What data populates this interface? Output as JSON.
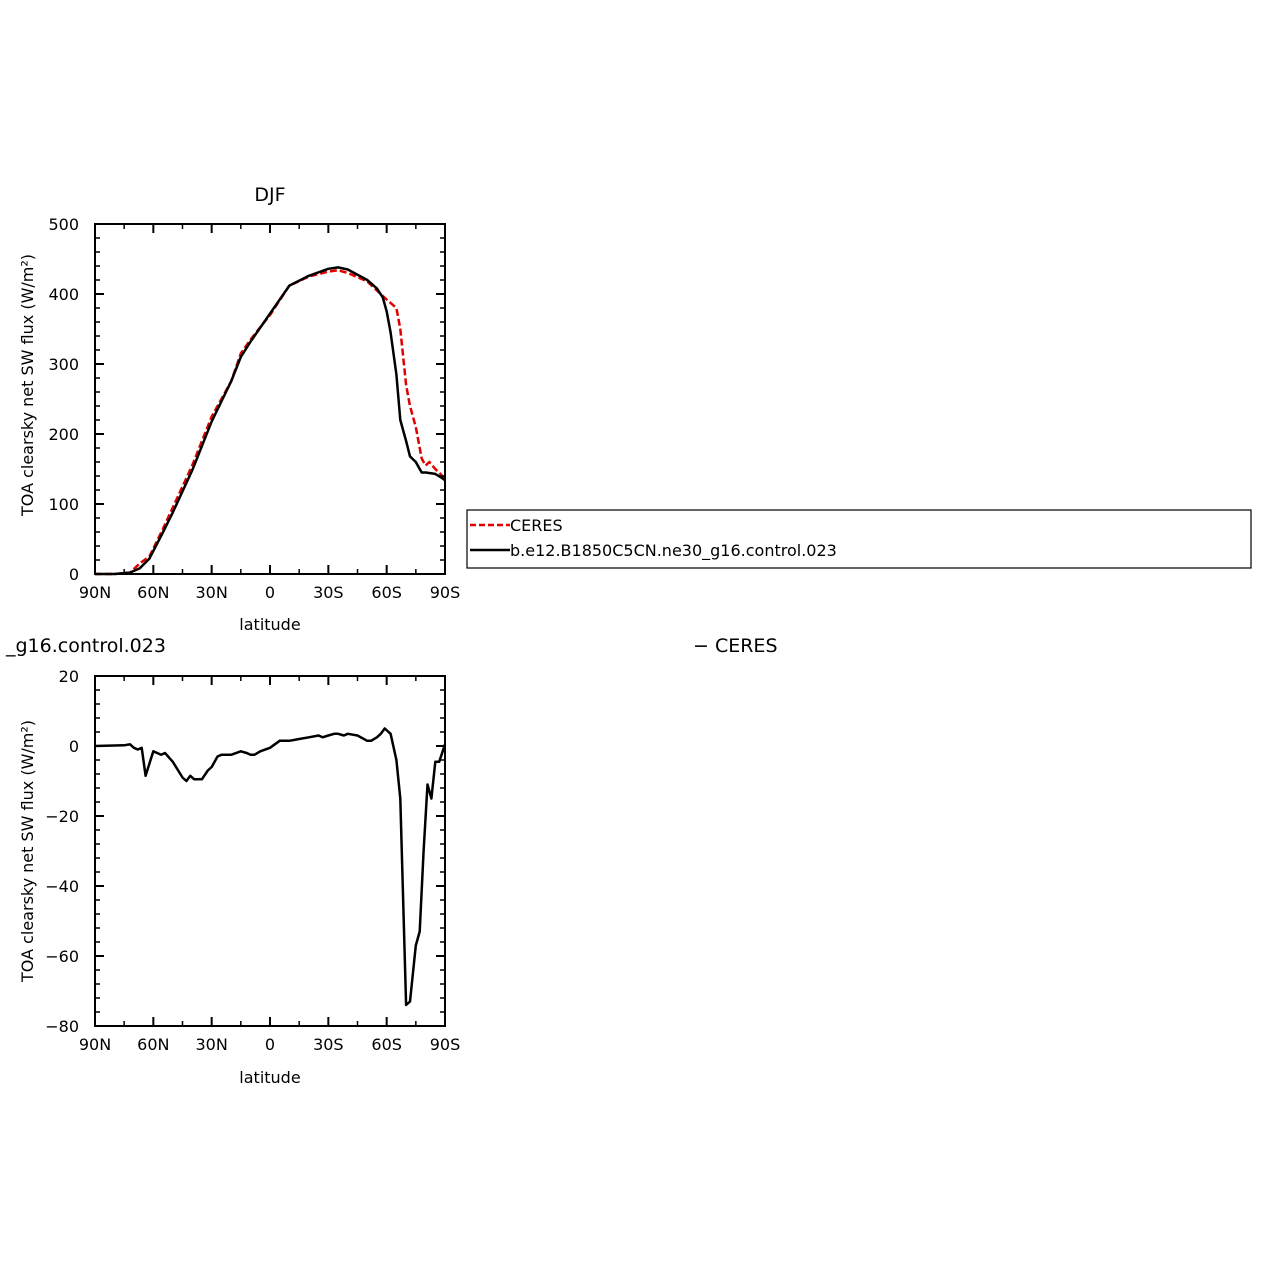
{
  "chart_data": [
    {
      "type": "line",
      "title": "DJF",
      "xlabel": "latitude",
      "ylabel": "TOA clearsky net SW flux (W/m²)",
      "xlim": [
        -90,
        90
      ],
      "ylim": [
        0,
        500
      ],
      "x_ticks": [
        -90,
        -60,
        -30,
        0,
        30,
        60,
        90
      ],
      "x_tick_labels": [
        "90N",
        "60N",
        "30N",
        "0",
        "30S",
        "60S",
        "90S"
      ],
      "y_ticks": [
        0,
        100,
        200,
        300,
        400,
        500
      ],
      "y_tick_labels": [
        "0",
        "100",
        "200",
        "300",
        "400",
        "500"
      ],
      "legend_position": "right",
      "series": [
        {
          "name": "CERES",
          "color": "#e00000",
          "style": "dashed",
          "x": [
            -90,
            -80,
            -72,
            -67,
            -62,
            -55,
            -50,
            -45,
            -40,
            -30,
            -20,
            -15,
            -10,
            0,
            10,
            20,
            30,
            35,
            40,
            50,
            55,
            60,
            65,
            67,
            70,
            72,
            75,
            78,
            80,
            82,
            85,
            88,
            90
          ],
          "y": [
            0,
            0,
            2,
            15,
            25,
            65,
            95,
            125,
            155,
            225,
            275,
            315,
            335,
            370,
            412,
            425,
            432,
            434,
            430,
            418,
            405,
            392,
            380,
            350,
            270,
            240,
            210,
            165,
            155,
            160,
            150,
            142,
            135
          ]
        },
        {
          "name": "b.e12.B1850C5CN.ne30_g16.control.023",
          "color": "#000000",
          "style": "solid",
          "x": [
            -90,
            -80,
            -72,
            -67,
            -62,
            -55,
            -50,
            -45,
            -40,
            -30,
            -20,
            -15,
            -10,
            0,
            10,
            20,
            30,
            35,
            40,
            50,
            55,
            58,
            60,
            62,
            65,
            67,
            70,
            72,
            75,
            78,
            80,
            85,
            88,
            90
          ],
          "y": [
            0,
            0,
            2,
            8,
            22,
            60,
            88,
            118,
            148,
            218,
            275,
            310,
            332,
            372,
            412,
            426,
            436,
            438,
            435,
            420,
            408,
            395,
            375,
            345,
            285,
            220,
            190,
            168,
            160,
            145,
            145,
            143,
            138,
            134
          ]
        }
      ]
    },
    {
      "type": "line",
      "title": "_g16.control.023",
      "title_right": "− CERES",
      "xlabel": "latitude",
      "ylabel": "TOA clearsky net SW flux (W/m²)",
      "xlim": [
        -90,
        90
      ],
      "ylim": [
        -80,
        20
      ],
      "x_ticks": [
        -90,
        -60,
        -30,
        0,
        30,
        60,
        90
      ],
      "x_tick_labels": [
        "90N",
        "60N",
        "30N",
        "0",
        "30S",
        "60S",
        "90S"
      ],
      "y_ticks": [
        -80,
        -60,
        -40,
        -20,
        0,
        20
      ],
      "y_tick_labels": [
        "−80",
        "−60",
        "−40",
        "−20",
        "0",
        "20"
      ],
      "series": [
        {
          "color": "#000000",
          "style": "solid",
          "x": [
            -90,
            -75,
            -72,
            -70,
            -68,
            -66,
            -64,
            -60,
            -58,
            -56,
            -54,
            -50,
            -45,
            -43,
            -41,
            -39,
            -35,
            -32,
            -30,
            -27,
            -25,
            -20,
            -15,
            -12,
            -10,
            -8,
            -5,
            0,
            5,
            10,
            15,
            20,
            25,
            27,
            30,
            33,
            35,
            38,
            40,
            45,
            50,
            52,
            55,
            57,
            59,
            62,
            65,
            67,
            70,
            72,
            75,
            77,
            79,
            81,
            83,
            85,
            87,
            90
          ],
          "y": [
            0,
            0.2,
            0.5,
            -0.5,
            -1,
            -0.5,
            -8.5,
            -1.5,
            -2,
            -2.5,
            -2,
            -4.5,
            -9,
            -10,
            -8.5,
            -9.5,
            -9.5,
            -7,
            -6,
            -3,
            -2.5,
            -2.5,
            -1.5,
            -2,
            -2.5,
            -2.5,
            -1.5,
            -0.5,
            1.5,
            1.5,
            2,
            2.5,
            3,
            2.5,
            3,
            3.5,
            3.5,
            3,
            3.5,
            3,
            1.5,
            1.5,
            2.5,
            3.5,
            5,
            3.5,
            -4,
            -15,
            -74,
            -73,
            -57,
            -53,
            -30,
            -11,
            -15,
            -4.5,
            -4.5,
            0.5
          ]
        }
      ]
    }
  ]
}
